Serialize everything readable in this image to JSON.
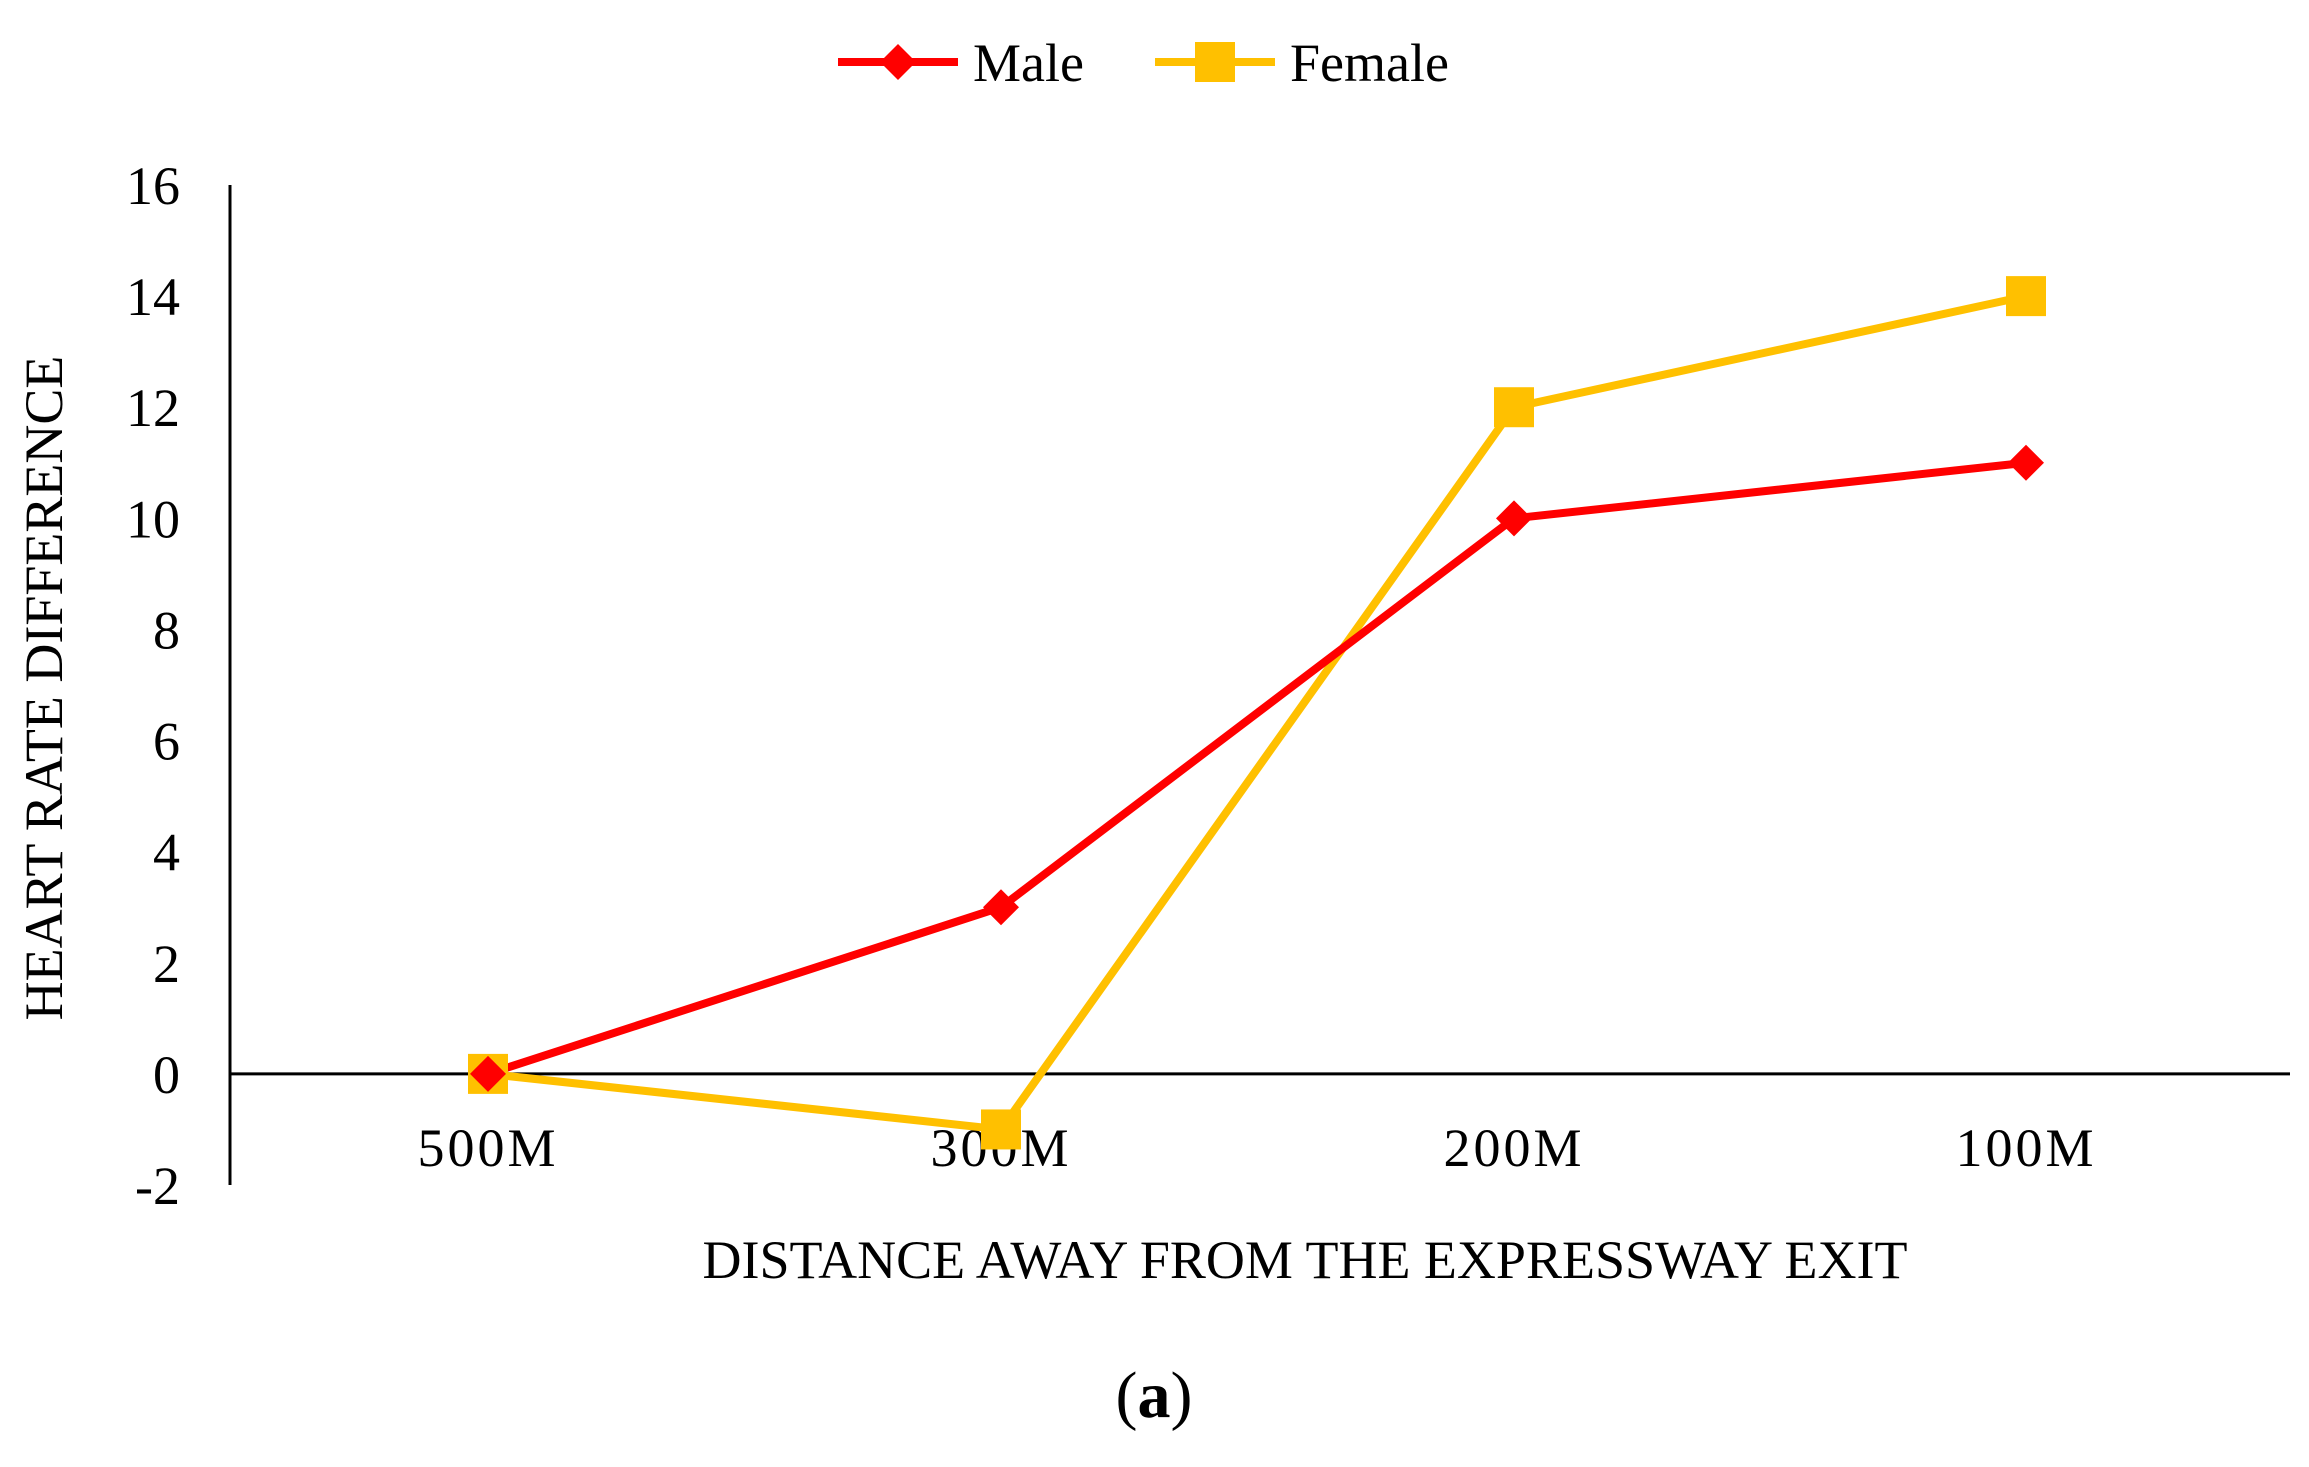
{
  "chart_data": {
    "type": "line",
    "categories": [
      "500M",
      "300M",
      "200M",
      "100M"
    ],
    "series": [
      {
        "name": "Male",
        "values": [
          0,
          3,
          10,
          11
        ],
        "color": "#ff0000",
        "marker": "diamond"
      },
      {
        "name": "Female",
        "values": [
          0,
          -1,
          12,
          14
        ],
        "color": "#ffc000",
        "marker": "square"
      }
    ],
    "xlabel": "DISTANCE AWAY FROM THE EXPRESSWAY EXIT",
    "ylabel": "HEART RATE DIFFERENCE",
    "ylim": [
      -2,
      16
    ],
    "yticks": [
      "-2",
      "0",
      "2",
      "4",
      "6",
      "8",
      "10",
      "12",
      "14",
      "16"
    ],
    "legend_position": "top-center",
    "grid": false
  },
  "panel_label": {
    "open": "(",
    "letter": "a",
    "close": ")"
  }
}
